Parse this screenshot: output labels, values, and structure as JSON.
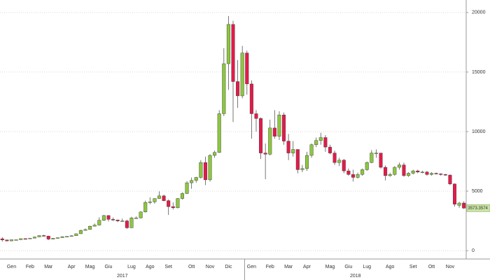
{
  "chart_data": {
    "type": "candlestick",
    "categories": [
      null,
      null,
      "Gen",
      null,
      null,
      null,
      "Feb",
      null,
      null,
      null,
      "Mar",
      null,
      null,
      null,
      null,
      "Apr",
      null,
      null,
      null,
      "Mag",
      null,
      null,
      null,
      "Giu",
      null,
      null,
      null,
      null,
      "Lug",
      null,
      null,
      null,
      "Ago",
      null,
      null,
      null,
      "Set",
      null,
      null,
      null,
      null,
      "Ott",
      null,
      null,
      null,
      "Nov",
      null,
      null,
      null,
      "Dic",
      null,
      null,
      null,
      null,
      "Gen",
      null,
      null,
      null,
      "Feb",
      null,
      null,
      null,
      "Mar",
      null,
      null,
      null,
      "Apr",
      null,
      null,
      null,
      null,
      "Mag",
      null,
      null,
      null,
      "Giu",
      null,
      null,
      null,
      "Lug",
      null,
      null,
      null,
      null,
      "Ago",
      null,
      null,
      null,
      null,
      "Set",
      null,
      null,
      null,
      "Ott",
      null,
      null,
      null,
      "Nov",
      null,
      null,
      null
    ],
    "years": [
      "2017",
      "2018"
    ],
    "open": [
      1000,
      900,
      820,
      920,
      920,
      1010,
      1000,
      1050,
      1150,
      1270,
      1230,
      970,
      1040,
      1090,
      1180,
      1200,
      1250,
      1420,
      1700,
      1780,
      2050,
      2150,
      2550,
      2950,
      2630,
      2580,
      2500,
      2500,
      1920,
      2750,
      2750,
      3250,
      4050,
      4100,
      4380,
      4600,
      4200,
      3700,
      3600,
      4380,
      4800,
      5700,
      5900,
      6150,
      7400,
      5950,
      8000,
      8250,
      11500,
      15700,
      19000,
      14200,
      13000,
      16600,
      14000,
      11500,
      11100,
      8200,
      8100,
      10300,
      9600,
      11400,
      9200,
      8200,
      8500,
      6800,
      6900,
      8000,
      8900,
      9250,
      9500,
      8700,
      8200,
      7400,
      7600,
      6700,
      6400,
      6150,
      6400,
      6800,
      7400,
      8200,
      8200,
      7000,
      6300,
      6400,
      7000,
      7200,
      6300,
      6500,
      6700,
      6600,
      6600,
      6400,
      6500,
      6450,
      6400,
      6350,
      5600,
      3800,
      4000
    ],
    "high": [
      1130,
      920,
      930,
      940,
      1030,
      1040,
      1070,
      1180,
      1290,
      1330,
      1250,
      1060,
      1110,
      1200,
      1220,
      1290,
      1450,
      1760,
      1850,
      2100,
      2280,
      2800,
      3000,
      2980,
      2780,
      2610,
      2700,
      2600,
      2850,
      2870,
      3300,
      4200,
      4480,
      4400,
      4980,
      4700,
      4300,
      4050,
      4420,
      4900,
      5850,
      6150,
      6200,
      7600,
      7900,
      8100,
      8400,
      11800,
      17000,
      19700,
      19300,
      16000,
      17200,
      16800,
      14300,
      11800,
      11200,
      9000,
      11000,
      11800,
      11700,
      11600,
      9800,
      9200,
      8500,
      7200,
      8300,
      9000,
      9500,
      9900,
      9700,
      8900,
      8400,
      7800,
      7700,
      6900,
      6800,
      6550,
      6900,
      7500,
      8450,
      8500,
      8200,
      7150,
      6550,
      7100,
      7400,
      7400,
      6600,
      6800,
      6800,
      6700,
      6700,
      6600,
      6550,
      6500,
      6450,
      6400,
      5650,
      4100,
      4150
    ],
    "low": [
      760,
      780,
      800,
      880,
      900,
      980,
      990,
      1040,
      1140,
      1200,
      890,
      950,
      1020,
      1080,
      1160,
      1180,
      1240,
      1400,
      1680,
      1760,
      2040,
      2100,
      2500,
      2450,
      2500,
      2400,
      2450,
      1830,
      1900,
      2700,
      2700,
      3200,
      3900,
      3950,
      4350,
      4150,
      3000,
      3450,
      3550,
      4300,
      4750,
      5200,
      5700,
      6050,
      5500,
      5800,
      7800,
      8200,
      11300,
      13500,
      10800,
      12000,
      12800,
      13100,
      9400,
      10000,
      7700,
      6000,
      8000,
      9400,
      9300,
      8900,
      7600,
      7900,
      6500,
      6600,
      6700,
      7800,
      8700,
      8900,
      8300,
      8100,
      7200,
      7100,
      6500,
      6300,
      5800,
      6050,
      6300,
      6700,
      7350,
      7800,
      6900,
      5900,
      6200,
      6300,
      6800,
      6200,
      6200,
      6400,
      6500,
      6500,
      6300,
      6300,
      6400,
      6300,
      6300,
      5500,
      3700,
      3600,
      3500
    ],
    "close": [
      900,
      820,
      920,
      920,
      1010,
      1000,
      1050,
      1150,
      1270,
      1230,
      970,
      1040,
      1090,
      1180,
      1200,
      1250,
      1420,
      1700,
      1780,
      2050,
      2150,
      2550,
      2950,
      2630,
      2580,
      2500,
      2500,
      1920,
      2750,
      2750,
      3250,
      4050,
      4100,
      4380,
      4600,
      4200,
      3700,
      3600,
      4380,
      4800,
      5700,
      5900,
      6150,
      7400,
      5950,
      8000,
      8250,
      11500,
      15700,
      19000,
      14200,
      13000,
      16600,
      14000,
      11500,
      11100,
      8200,
      8100,
      10300,
      9600,
      11400,
      9200,
      8200,
      8500,
      6800,
      6900,
      8000,
      8900,
      9250,
      9500,
      8700,
      8200,
      7400,
      7600,
      6700,
      6400,
      6150,
      6400,
      6800,
      7400,
      8200,
      8200,
      7000,
      6300,
      6400,
      7000,
      7200,
      6300,
      6500,
      6700,
      6600,
      6600,
      6400,
      6500,
      6450,
      6400,
      6350,
      5600,
      3900,
      4000,
      3573
    ],
    "up_color": "#8dc63f",
    "down_color": "#e31b4a",
    "last_price_label": "3573.3574",
    "ylim": [
      -700,
      21050
    ],
    "yticks": [
      0,
      5000,
      10000,
      15000,
      20000
    ],
    "grid": true
  }
}
